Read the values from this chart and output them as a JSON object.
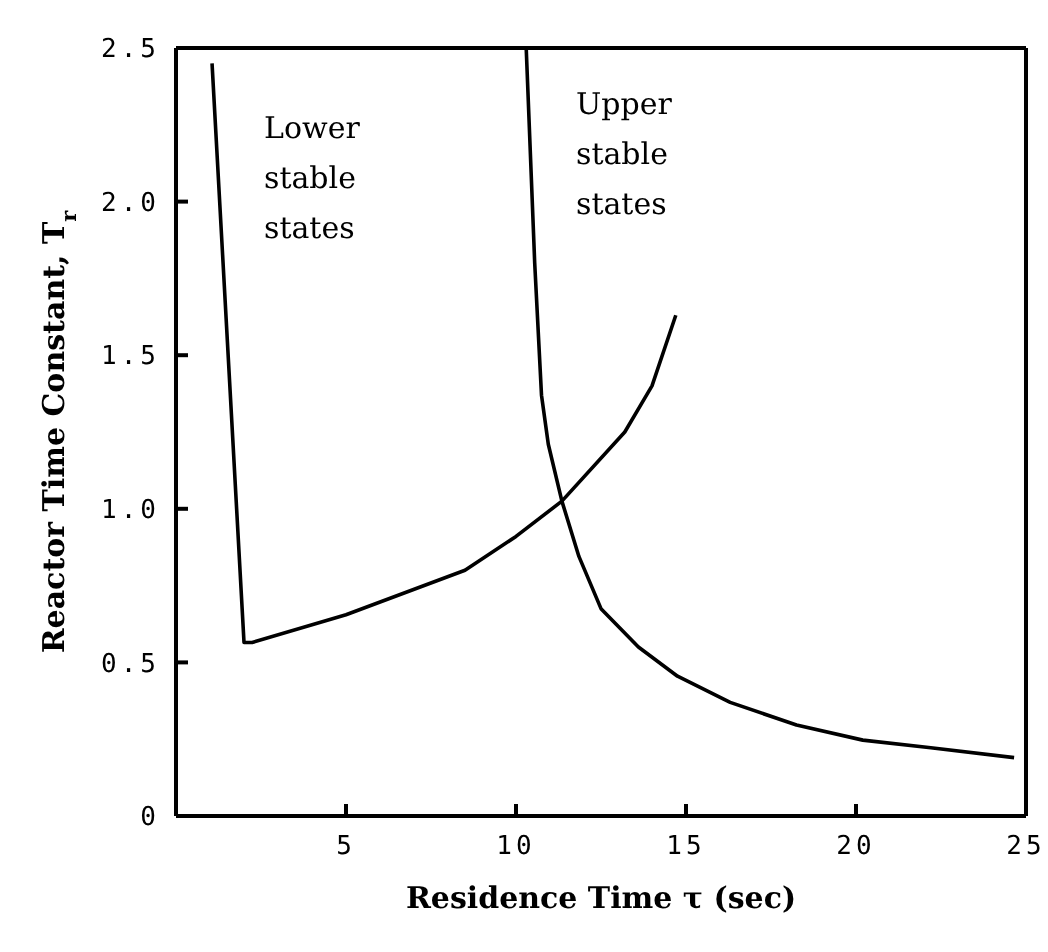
{
  "chart_data": {
    "type": "line",
    "xlabel": "Residence Time τ (sec)",
    "ylabel": "Reactor Time Constant, T$_{r}$",
    "xlim": [
      0,
      25
    ],
    "xticks": [
      {
        "value": 0,
        "label": null
      },
      5,
      10,
      15,
      20,
      25
    ],
    "ylim": [
      0,
      2.5
    ],
    "yticks": [
      0,
      0.5,
      {
        "value": 1,
        "label": "1.0"
      },
      1.5,
      {
        "value": 2,
        "label": "2.0"
      },
      2.5
    ],
    "marker": "none",
    "line_style": "solid",
    "series": [
      {
        "color": "#000000",
        "x": [
          1.06,
          2.0,
          2.24,
          5,
          8.5,
          10,
          11.35,
          13.2,
          14,
          14.7
        ],
        "values": [
          2.45,
          0.565,
          0.565,
          0.655,
          0.8,
          0.91,
          1.025,
          1.25,
          1.4,
          1.63
        ]
      },
      {
        "color": "#000000",
        "x": [
          10.3,
          10.55,
          10.75,
          10.95,
          11.35,
          11.85,
          12.5,
          13.6,
          14.75,
          16.3,
          18.25,
          20.2,
          22.2,
          24.65
        ],
        "values": [
          2.5,
          1.8,
          1.37,
          1.21,
          1.025,
          0.845,
          0.675,
          0.55,
          0.455,
          0.37,
          0.296,
          0.247,
          0.222,
          0.19
        ]
      }
    ],
    "annotations": [
      "Lower\nstable\nstates",
      "Upper\nstable\nstates"
    ]
  }
}
